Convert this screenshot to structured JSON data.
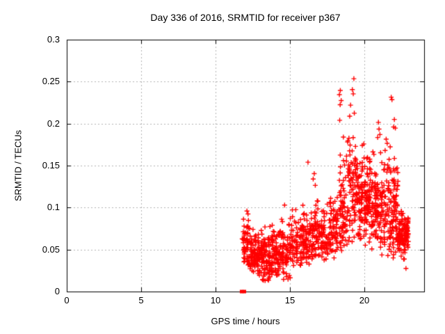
{
  "chart_data": {
    "type": "scatter",
    "title": "Day 336 of 2016, SRMTID for receiver p367",
    "xlabel": "GPS time / hours",
    "ylabel": "SRMTID / TECUs",
    "xlim": [
      0,
      24
    ],
    "ylim": [
      0,
      0.3
    ],
    "grid": {
      "on": true,
      "color": "#b4b4b4",
      "dash": [
        2,
        3
      ]
    },
    "axis_color": "#000000",
    "background_color": "#ffffff",
    "marker": {
      "shape": "plus",
      "color": "#ff0000",
      "size": 7
    },
    "xticks": [
      {
        "v": 0,
        "label": "0"
      },
      {
        "v": 5,
        "label": "5"
      },
      {
        "v": 10,
        "label": "10"
      },
      {
        "v": 15,
        "label": "15"
      },
      {
        "v": 20,
        "label": "20"
      }
    ],
    "yticks": [
      {
        "v": 0,
        "label": "0"
      },
      {
        "v": 0.05,
        "label": "0.05"
      },
      {
        "v": 0.1,
        "label": "0.1"
      },
      {
        "v": 0.15,
        "label": "0.15"
      },
      {
        "v": 0.2,
        "label": "0.2"
      },
      {
        "v": 0.25,
        "label": "0.25"
      },
      {
        "v": 0.3,
        "label": "0.3"
      }
    ],
    "baseline_squares": [
      {
        "x": 11.74,
        "y": 0
      },
      {
        "x": 11.93,
        "y": 0
      }
    ],
    "clusters": [
      {
        "h0": 11.78,
        "h1": 12.28,
        "n": 60,
        "mu": 0.058,
        "sd": 0.017,
        "min": 0.028,
        "max": 0.096,
        "cols": 2
      },
      {
        "h0": 12.28,
        "h1": 13.0,
        "n": 95,
        "mu": 0.044,
        "sd": 0.013,
        "min": 0.017,
        "max": 0.082,
        "cols": 3
      },
      {
        "h0": 13.0,
        "h1": 13.7,
        "n": 95,
        "mu": 0.042,
        "sd": 0.014,
        "min": 0.012,
        "max": 0.09,
        "cols": 3
      },
      {
        "h0": 13.7,
        "h1": 14.4,
        "n": 85,
        "mu": 0.046,
        "sd": 0.015,
        "min": 0.018,
        "max": 0.093,
        "cols": 3
      },
      {
        "h0": 14.4,
        "h1": 15.1,
        "n": 75,
        "mu": 0.048,
        "sd": 0.018,
        "min": 0.013,
        "max": 0.105,
        "cols": 3
      },
      {
        "h0": 15.1,
        "h1": 15.8,
        "n": 65,
        "mu": 0.055,
        "sd": 0.016,
        "min": 0.027,
        "max": 0.1,
        "cols": 3
      },
      {
        "h0": 15.8,
        "h1": 16.4,
        "n": 70,
        "mu": 0.06,
        "sd": 0.017,
        "min": 0.03,
        "max": 0.116,
        "cols": 3
      },
      {
        "h0": 16.4,
        "h1": 17.0,
        "n": 72,
        "mu": 0.067,
        "sd": 0.021,
        "min": 0.034,
        "max": 0.142,
        "cols": 3
      },
      {
        "h0": 17.0,
        "h1": 17.6,
        "n": 60,
        "mu": 0.064,
        "sd": 0.018,
        "min": 0.037,
        "max": 0.115,
        "cols": 3
      },
      {
        "h0": 17.6,
        "h1": 18.25,
        "n": 70,
        "mu": 0.072,
        "sd": 0.021,
        "min": 0.04,
        "max": 0.134,
        "cols": 3
      },
      {
        "h0": 18.25,
        "h1": 18.85,
        "n": 75,
        "mu": 0.094,
        "sd": 0.033,
        "min": 0.048,
        "max": 0.205,
        "cols": 3
      },
      {
        "h0": 18.85,
        "h1": 19.55,
        "n": 95,
        "mu": 0.124,
        "sd": 0.04,
        "min": 0.058,
        "max": 0.232,
        "cols": 3
      },
      {
        "h0": 19.55,
        "h1": 20.25,
        "n": 115,
        "mu": 0.112,
        "sd": 0.029,
        "min": 0.055,
        "max": 0.183,
        "cols": 4
      },
      {
        "h0": 20.25,
        "h1": 21.0,
        "n": 112,
        "mu": 0.1,
        "sd": 0.027,
        "min": 0.05,
        "max": 0.168,
        "cols": 4
      },
      {
        "h0": 21.0,
        "h1": 21.7,
        "n": 85,
        "mu": 0.094,
        "sd": 0.031,
        "min": 0.042,
        "max": 0.182,
        "cols": 3
      },
      {
        "h0": 21.7,
        "h1": 22.25,
        "n": 92,
        "mu": 0.094,
        "sd": 0.036,
        "min": 0.04,
        "max": 0.2,
        "cols": 3
      },
      {
        "h0": 22.25,
        "h1": 22.95,
        "n": 125,
        "mu": 0.066,
        "sd": 0.013,
        "min": 0.035,
        "max": 0.098,
        "cols": 4
      }
    ],
    "notable_points": [
      {
        "x": 19.28,
        "y": 0.2535
      },
      {
        "x": 19.18,
        "y": 0.2405
      },
      {
        "x": 19.24,
        "y": 0.2355
      },
      {
        "x": 18.37,
        "y": 0.2395
      },
      {
        "x": 18.31,
        "y": 0.2345
      },
      {
        "x": 18.43,
        "y": 0.2275
      },
      {
        "x": 18.36,
        "y": 0.2225
      },
      {
        "x": 19.06,
        "y": 0.222
      },
      {
        "x": 19.31,
        "y": 0.2125
      },
      {
        "x": 18.33,
        "y": 0.204
      },
      {
        "x": 21.79,
        "y": 0.2315
      },
      {
        "x": 21.84,
        "y": 0.2285
      },
      {
        "x": 22.0,
        "y": 0.205
      },
      {
        "x": 21.95,
        "y": 0.196
      },
      {
        "x": 20.93,
        "y": 0.2015
      },
      {
        "x": 20.97,
        "y": 0.1935
      },
      {
        "x": 20.88,
        "y": 0.1835
      },
      {
        "x": 21.03,
        "y": 0.187
      },
      {
        "x": 21.45,
        "y": 0.1815
      },
      {
        "x": 21.52,
        "y": 0.1765
      },
      {
        "x": 21.38,
        "y": 0.168
      },
      {
        "x": 16.2,
        "y": 0.154
      },
      {
        "x": 16.62,
        "y": 0.1405
      },
      {
        "x": 16.55,
        "y": 0.134
      },
      {
        "x": 16.69,
        "y": 0.1265
      },
      {
        "x": 14.63,
        "y": 0.103
      },
      {
        "x": 22.78,
        "y": 0.0275
      },
      {
        "x": 13.2,
        "y": 0.0135
      },
      {
        "x": 14.86,
        "y": 0.0148
      },
      {
        "x": 13.56,
        "y": 0.016
      }
    ]
  }
}
